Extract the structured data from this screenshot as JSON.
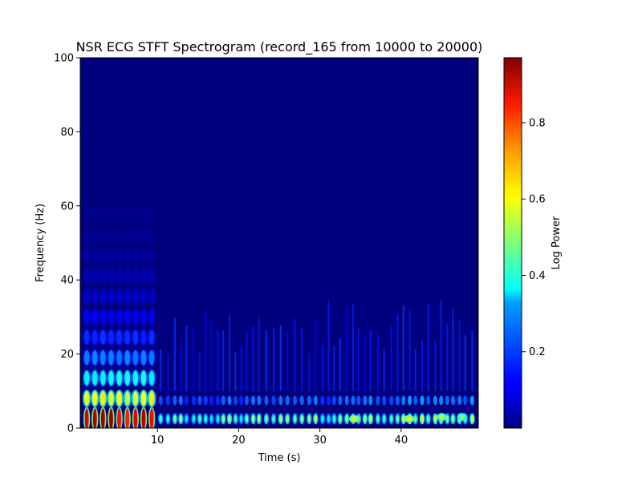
{
  "chart_data": {
    "type": "heatmap",
    "title": "NSR ECG STFT Spectrogram (record_165 from 10000 to 20000)",
    "xlabel": "Time (s)",
    "ylabel": "Frequency (Hz)",
    "xlim": [
      0.5,
      49.5
    ],
    "ylim": [
      0,
      100
    ],
    "xticks": [
      10,
      20,
      30,
      40
    ],
    "yticks": [
      0,
      20,
      40,
      60,
      80,
      100
    ],
    "grid": false,
    "colormap": "jet",
    "colorbar": {
      "label": "Log Power",
      "range": [
        0.0,
        0.97
      ],
      "ticks": [
        0.2,
        0.4,
        0.6,
        0.8
      ]
    },
    "segments": [
      {
        "x_start": 0.5,
        "x_end": 9.8,
        "beat_times": [
          1.3,
          2.3,
          3.3,
          4.3,
          5.3,
          6.3,
          7.3,
          8.3,
          9.3
        ],
        "peak_power": 0.95,
        "harmonic_spacing_hz": 5.5,
        "harmonic_extent_hz": 58
      },
      {
        "x_start": 9.8,
        "x_end": 49.5,
        "beat_interval_s": 0.8,
        "peak_power": 0.45,
        "harmonic_extent_hz": 35
      }
    ],
    "hotspots": [
      {
        "x": 34.2,
        "y": 2.5,
        "value": 0.6
      },
      {
        "x": 41.0,
        "y": 2.5,
        "value": 0.62
      },
      {
        "x": 45.0,
        "y": 3.0,
        "value": 0.55
      },
      {
        "x": 47.5,
        "y": 3.0,
        "value": 0.5
      }
    ]
  }
}
